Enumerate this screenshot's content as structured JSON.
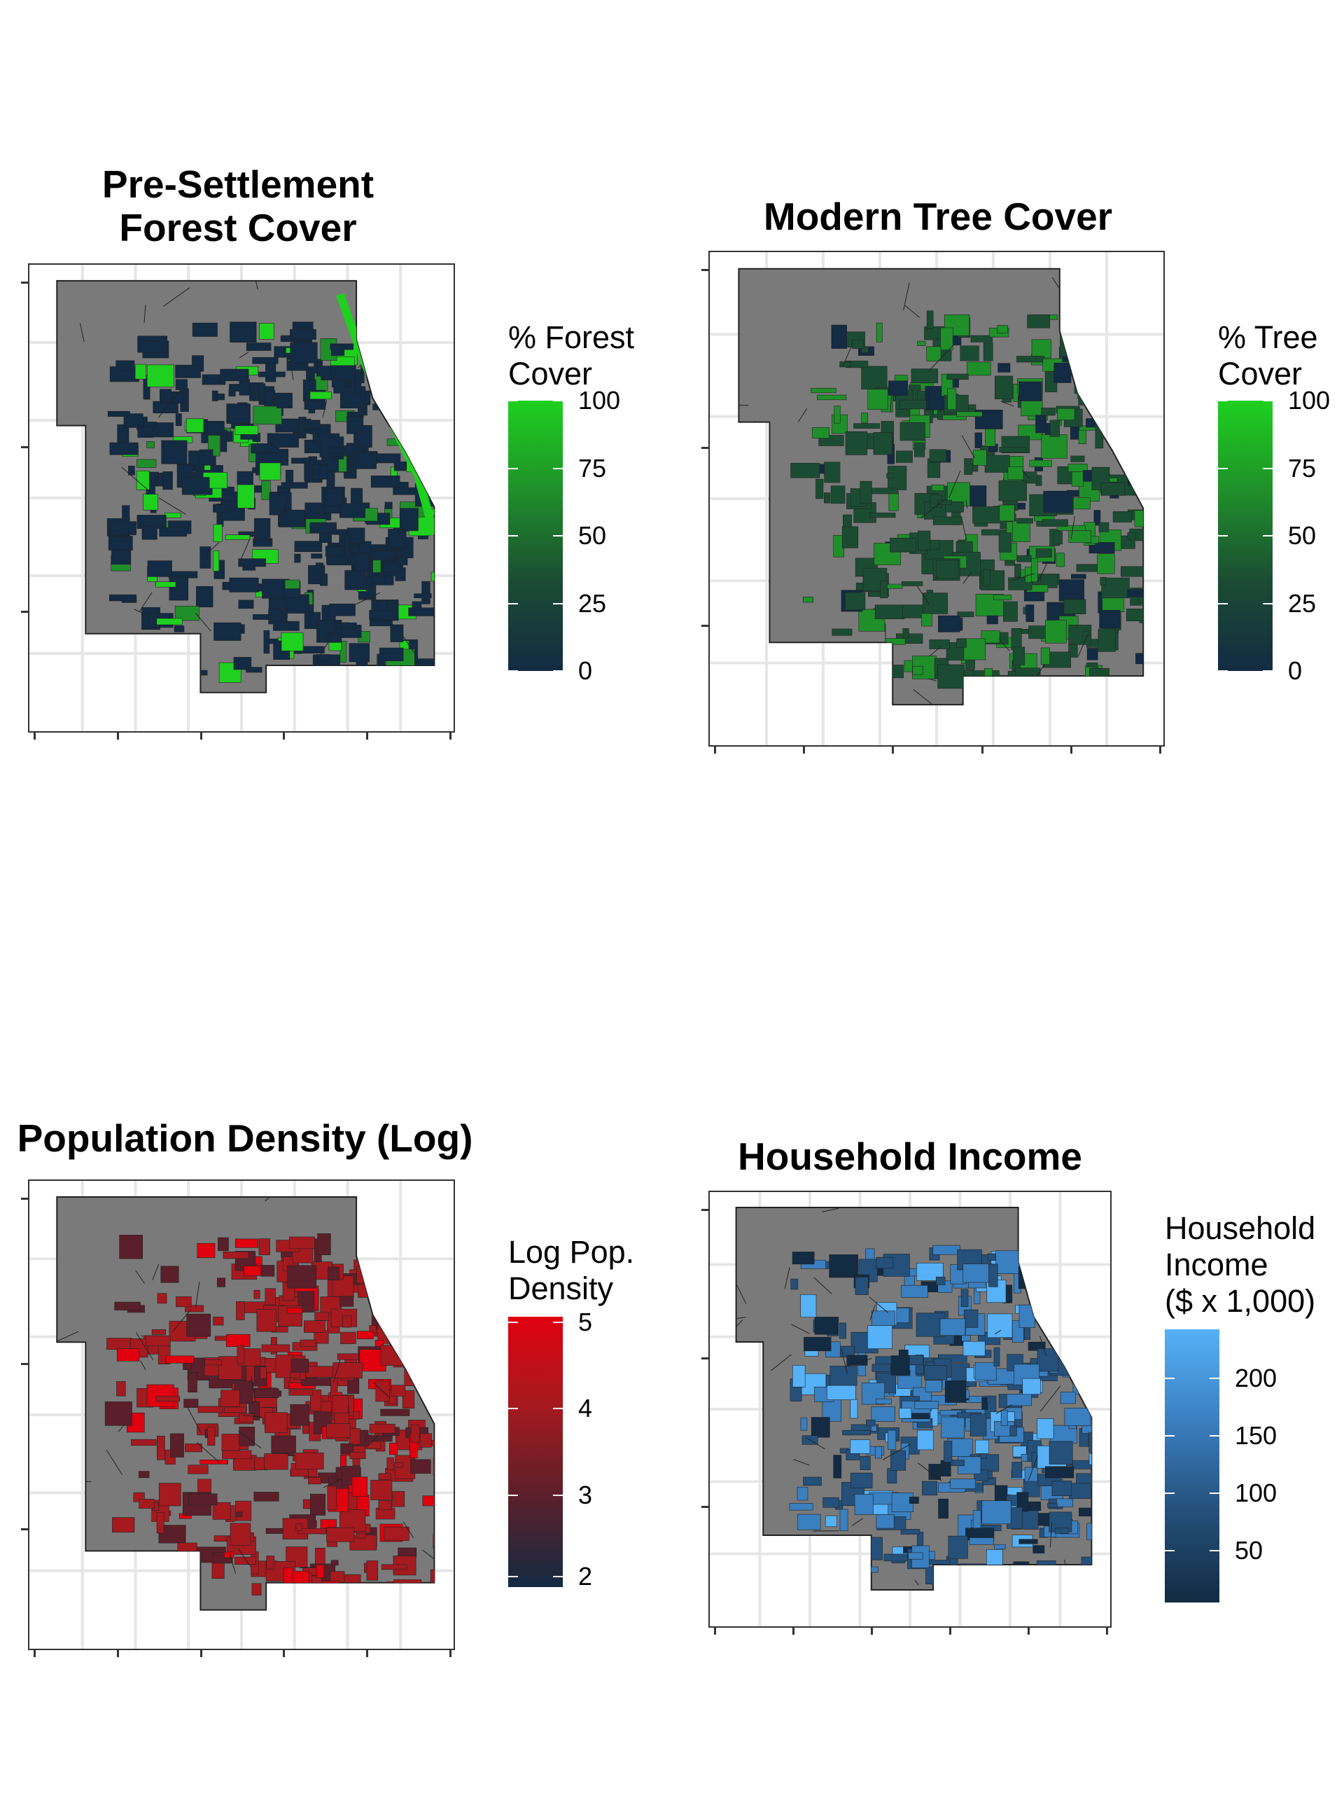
{
  "colors": {
    "background": "#ffffff",
    "land_gray": "#7a7a7a",
    "grid": "#e6e6e6",
    "dark_low": "#132b43"
  },
  "panels": [
    {
      "id": "forest",
      "title": "Pre-Settlement\nForest Cover",
      "legend_title": "% Forest\nCover",
      "legend_labels": [
        "100",
        "75",
        "50",
        "25",
        "0"
      ],
      "gradient": [
        "#1fd01f",
        "#1f8f2a",
        "#1b4c33",
        "#132b43"
      ],
      "pattern": "forest"
    },
    {
      "id": "tree",
      "title": "Modern Tree Cover",
      "legend_title": "% Tree\nCover",
      "legend_labels": [
        "100",
        "75",
        "50",
        "25",
        "0"
      ],
      "gradient": [
        "#1fd01f",
        "#1f8f2a",
        "#1b4c33",
        "#132b43"
      ],
      "pattern": "tree"
    },
    {
      "id": "pop",
      "title": "Population Density (Log)",
      "legend_title": "Log Pop.\nDensity",
      "legend_labels": [
        "5",
        "4",
        "3",
        "2"
      ],
      "gradient": [
        "#e0000e",
        "#a41a1f",
        "#5a1f2a",
        "#132b43"
      ],
      "pattern": "pop"
    },
    {
      "id": "income",
      "title": "Household Income",
      "legend_title": "Household\nIncome\n($ x 1,000)",
      "legend_labels": [
        "200",
        "150",
        "100",
        "50"
      ],
      "gradient": [
        "#56b1f7",
        "#3a7fc0",
        "#24507a",
        "#132b43"
      ],
      "pattern": "income"
    }
  ]
}
